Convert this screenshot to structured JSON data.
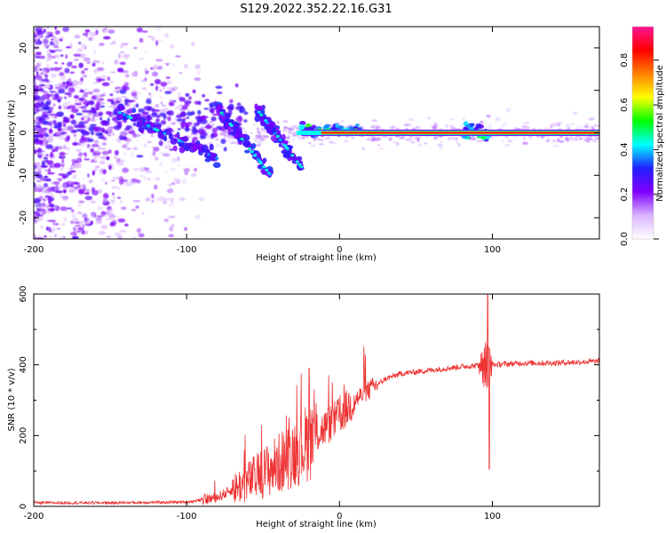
{
  "title": "S129.2022.352.22.16.G31",
  "colors": {
    "snr_line": "#ee3333",
    "frame": "#000000",
    "speckle": "#8a2be2"
  },
  "chart_data": [
    {
      "type": "heatmap",
      "name": "spectrogram",
      "xlabel": "Height of straight line (km)",
      "ylabel": "Frequency (Hz)",
      "xlim": [
        -200,
        170
      ],
      "ylim": [
        -25,
        25
      ],
      "x_ticks": [
        -200,
        -100,
        0,
        100
      ],
      "x_tick_labels": [
        "-200",
        "-100",
        "0",
        "100"
      ],
      "y_ticks": [
        20,
        10,
        0,
        -10,
        -20
      ],
      "y_tick_labels": [
        "20",
        "10",
        "0",
        "-10",
        "-20"
      ],
      "colorbar": {
        "label": "Normalized spectral amplitude",
        "range": [
          0.0,
          0.95
        ],
        "ticks": [
          0.0,
          0.2,
          0.4,
          0.6,
          0.8
        ],
        "tick_labels": [
          "0.0",
          "0.2",
          "0.4",
          "0.6",
          "0.8"
        ],
        "colormap": [
          "#ffffff",
          "#d9b3ff",
          "#8000ff",
          "#2020ff",
          "#00ffff",
          "#00ff00",
          "#ffff00",
          "#ff8000",
          "#ff0000",
          "#ff1493"
        ]
      },
      "features": {
        "scatter_region_x": [
          -200,
          -110
        ],
        "scatter_region_y": [
          -25,
          25
        ],
        "diagonal_traces": [
          {
            "x": [
              -145,
              -80
            ],
            "y": [
              5,
              -6
            ]
          },
          {
            "x": [
              -80,
              -45
            ],
            "y": [
              6,
              -10
            ]
          },
          {
            "x": [
              -55,
              -25
            ],
            "y": [
              6,
              -8
            ]
          }
        ],
        "carrier_line": {
          "x": [
            -25,
            170
          ],
          "y": 0
        }
      }
    },
    {
      "type": "line",
      "name": "snr",
      "xlabel": "Height of straight line (km)",
      "ylabel": "SNR (10 * v/v)",
      "xlim": [
        -200,
        170
      ],
      "ylim": [
        0,
        600
      ],
      "x_ticks": [
        -200,
        -100,
        0,
        100
      ],
      "x_tick_labels": [
        "-200",
        "-100",
        "0",
        "100"
      ],
      "y_ticks": [
        0,
        200,
        400,
        600
      ],
      "y_tick_labels": [
        "0",
        "200",
        "400",
        "600"
      ],
      "trend": {
        "x": [
          -200,
          -150,
          -100,
          -80,
          -60,
          -40,
          -20,
          0,
          10,
          20,
          30,
          40,
          60,
          80,
          100,
          120,
          140,
          170
        ],
        "y": [
          10,
          10,
          12,
          25,
          70,
          120,
          185,
          255,
          300,
          330,
          360,
          375,
          385,
          395,
          400,
          405,
          405,
          410
        ]
      },
      "spikes": [
        {
          "x": -20,
          "y": 390
        },
        {
          "x": 97,
          "y": 600
        },
        {
          "x": 98,
          "y": 105
        }
      ]
    }
  ]
}
